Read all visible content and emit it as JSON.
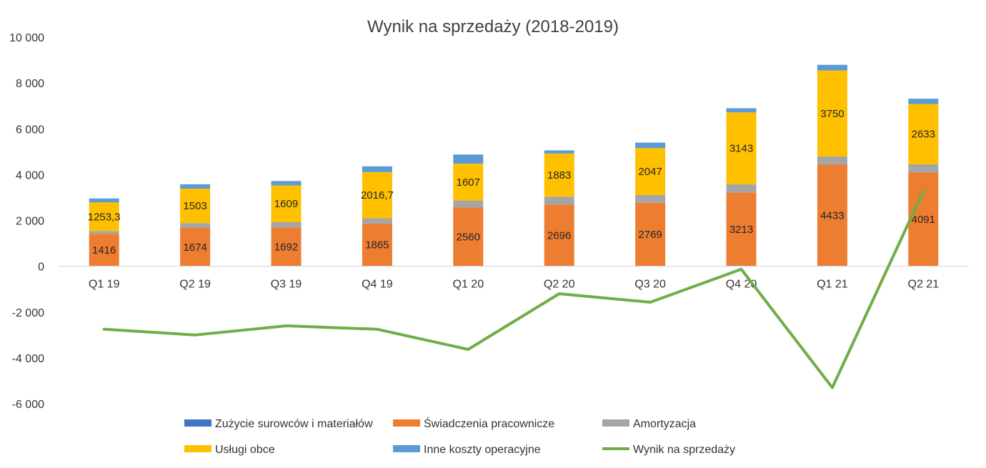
{
  "chart_data": {
    "type": "bar",
    "stacked": true,
    "title": "Wynik na sprzedaży (2018-2019)",
    "xlabel": "",
    "ylabel": "",
    "ylim": [
      -6000,
      10000
    ],
    "yticks": [
      10000,
      8000,
      6000,
      4000,
      2000,
      0,
      -2000,
      -4000,
      -6000
    ],
    "ytick_labels": [
      "10 000",
      "8 000",
      "6 000",
      "4 000",
      "2 000",
      "0",
      "-2 000",
      "-4 000",
      "-6 000"
    ],
    "categories": [
      "Q1 19",
      "Q2 19",
      "Q3 19",
      "Q4 19",
      "Q1 20",
      "Q2 20",
      "Q3 20",
      "Q4 20",
      "Q1 21",
      "Q2 21"
    ],
    "series": [
      {
        "name": "Zużycie surowców i materiałów",
        "kind": "bar",
        "color": "#4472C4",
        "values": [
          0,
          0,
          0,
          0,
          0,
          0,
          0,
          0,
          0,
          0
        ],
        "show_labels": false
      },
      {
        "name": "Świadczenia pracownicze",
        "kind": "bar",
        "color": "#ED7D31",
        "values": [
          1416,
          1674,
          1692,
          1865,
          2560,
          2696,
          2769,
          3213,
          4433,
          4091
        ],
        "labels": [
          "1416",
          "1674",
          "1692",
          "1865",
          "2560",
          "2696",
          "2769",
          "3213",
          "4433",
          "4091"
        ],
        "show_labels": true
      },
      {
        "name": "Amortyzacja",
        "kind": "bar",
        "color": "#A5A5A5",
        "values": [
          120,
          210,
          230,
          230,
          310,
          340,
          340,
          360,
          360,
          360
        ],
        "show_labels": false
      },
      {
        "name": "Usługi obce",
        "kind": "bar",
        "color": "#FFC000",
        "values": [
          1253.3,
          1503,
          1609,
          2016.7,
          1607,
          1883,
          2047,
          3143,
          3750,
          2633
        ],
        "labels": [
          "1253,3",
          "1503",
          "1609",
          "2016,7",
          "1607",
          "1883",
          "2047",
          "3143",
          "3750",
          "2633"
        ],
        "show_labels": true
      },
      {
        "name": "Inne koszty operacyjne",
        "kind": "bar",
        "color": "#5B9BD5",
        "values": [
          170,
          190,
          190,
          250,
          400,
          140,
          240,
          180,
          250,
          230
        ],
        "show_labels": false
      },
      {
        "name": "Wynik na sprzedaży",
        "kind": "line",
        "color": "#70AD47",
        "values": [
          -2750,
          -3000,
          -2600,
          -2750,
          -3630,
          -1200,
          -1570,
          -130,
          -5300,
          3280
        ],
        "show_labels": false
      }
    ],
    "legend": {
      "position": "bottom",
      "rows": [
        [
          "Zużycie surowców i materiałów",
          "Świadczenia pracownicze",
          "Amortyzacja"
        ],
        [
          "Usługi obce",
          "Inne koszty operacyjne",
          "Wynik na sprzedaży"
        ]
      ]
    },
    "grid": false
  }
}
